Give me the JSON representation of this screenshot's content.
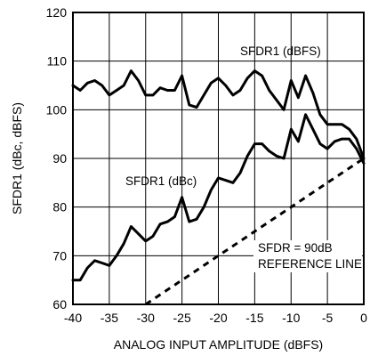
{
  "chart_data": {
    "type": "line",
    "title": "",
    "xlabel": "ANALOG INPUT AMPLITUDE (dBFS)",
    "ylabel": "SFDR1 (dBc, dBFS)",
    "xlim": [
      -40,
      0
    ],
    "ylim": [
      60,
      120
    ],
    "xticks": [
      "-40",
      "-35",
      "-30",
      "-25",
      "-20",
      "-15",
      "-10",
      "-5",
      "0"
    ],
    "yticks": [
      "60",
      "70",
      "80",
      "90",
      "100",
      "110",
      "120"
    ],
    "grid": true,
    "series": [
      {
        "name": "SFDR1 (dBFS)",
        "style": "solid",
        "color": "#000000",
        "x": [
          -40,
          -39,
          -38,
          -37,
          -36,
          -35,
          -34,
          -33,
          -32,
          -31,
          -30,
          -29,
          -28,
          -27,
          -26,
          -25,
          -24,
          -23,
          -22,
          -21,
          -20,
          -19,
          -18,
          -17,
          -16,
          -15,
          -14,
          -13,
          -12,
          -11,
          -10,
          -9,
          -8,
          -7,
          -6,
          -5,
          -4,
          -3,
          -2,
          -1,
          0
        ],
        "y": [
          105,
          104,
          105.5,
          106,
          105,
          103,
          104,
          105,
          108,
          106,
          103,
          103,
          104.5,
          104,
          104,
          107,
          101,
          100.5,
          103,
          105.5,
          106.5,
          105,
          103,
          104,
          106.5,
          108,
          107,
          104,
          102,
          100,
          106,
          102.5,
          107,
          103.5,
          99,
          97,
          97,
          97,
          96,
          94,
          90
        ]
      },
      {
        "name": "SFDR1 (dBc)",
        "style": "solid",
        "color": "#000000",
        "x": [
          -40,
          -39,
          -38,
          -37,
          -36,
          -35,
          -34,
          -33,
          -32,
          -31,
          -30,
          -29,
          -28,
          -27,
          -26,
          -25,
          -24,
          -23,
          -22,
          -21,
          -20,
          -19,
          -18,
          -17,
          -16,
          -15,
          -14,
          -13,
          -12,
          -11,
          -10,
          -9,
          -8,
          -7,
          -6,
          -5,
          -4,
          -3,
          -2,
          -1,
          0
        ],
        "y": [
          65,
          65,
          67.5,
          69,
          68.5,
          68,
          70,
          72.5,
          76,
          74.5,
          73,
          74,
          76.5,
          77,
          78,
          82,
          77,
          77.5,
          80,
          83.5,
          86,
          85.5,
          85,
          87,
          90.5,
          93,
          93,
          91.5,
          90.5,
          90,
          96,
          93.5,
          99,
          96,
          93,
          92,
          93.5,
          94,
          94,
          92,
          89
        ]
      },
      {
        "name": "SFDR = 90dB REFERENCE LINE",
        "style": "dashed",
        "color": "#000000",
        "x": [
          -30,
          0
        ],
        "y": [
          60,
          90
        ]
      }
    ],
    "annotations": [
      {
        "id": "dbfs",
        "text": "SFDR1 (dBFS)"
      },
      {
        "id": "dbc",
        "text": "SFDR1 (dBc)"
      },
      {
        "id": "ref1",
        "text": "SFDR = 90dB"
      },
      {
        "id": "ref2",
        "text": "REFERENCE LINE"
      }
    ]
  }
}
